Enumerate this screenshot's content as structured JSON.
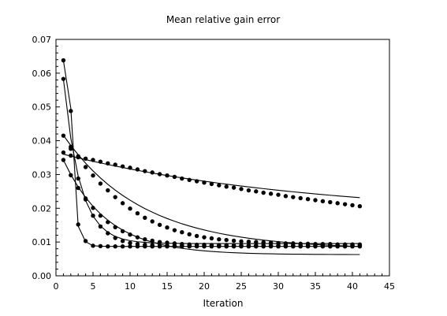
{
  "chart_data": {
    "type": "line",
    "title": "Mean relative gain error",
    "xlabel": "Iteration",
    "ylabel": "",
    "xlim": [
      0,
      45
    ],
    "ylim": [
      0,
      0.07
    ],
    "xticks": [
      "0",
      "5",
      "10",
      "15",
      "20",
      "25",
      "30",
      "35",
      "40",
      "45"
    ],
    "yticks": [
      "0.00",
      "0.01",
      "0.02",
      "0.03",
      "0.04",
      "0.05",
      "0.06",
      "0.07"
    ],
    "grid": false,
    "legend": "none",
    "line_color": "#000000",
    "marker": "filled-circle",
    "series": [
      {
        "x": [
          1,
          2,
          3,
          4,
          5,
          6,
          7,
          8,
          9,
          10,
          11,
          12,
          13,
          14,
          15,
          16,
          17,
          18,
          19,
          20,
          21,
          22,
          23,
          24,
          25,
          26,
          27,
          28,
          29,
          30,
          31,
          32,
          33,
          34,
          35,
          36,
          37,
          38,
          39,
          40,
          41
        ],
        "values": [
          0.0365,
          0.0356,
          0.0351,
          0.0347,
          0.0343,
          0.0338,
          0.0333,
          0.0329,
          0.0324,
          0.032,
          0.0315,
          0.031,
          0.0306,
          0.0301,
          0.0297,
          0.0293,
          0.0288,
          0.0284,
          0.028,
          0.0276,
          0.0272,
          0.0268,
          0.0264,
          0.0261,
          0.0257,
          0.0253,
          0.025,
          0.0246,
          0.0243,
          0.024,
          0.0236,
          0.0233,
          0.023,
          0.0227,
          0.0224,
          0.0221,
          0.0218,
          0.0215,
          0.0212,
          0.0209,
          0.0206
        ],
        "fit": [
          0.036,
          0.03545,
          0.03492,
          0.03441,
          0.03391,
          0.03343,
          0.03296,
          0.03251,
          0.03207,
          0.03164,
          0.03123,
          0.03083,
          0.03044,
          0.03006,
          0.0297,
          0.02934,
          0.029,
          0.02866,
          0.02834,
          0.02802,
          0.02772,
          0.02742,
          0.02713,
          0.02685,
          0.02658,
          0.02632,
          0.02606,
          0.02581,
          0.02557,
          0.02533,
          0.0251,
          0.02488,
          0.02467,
          0.02446,
          0.02425,
          0.02405,
          0.02386,
          0.02367,
          0.02349,
          0.02331,
          0.02314
        ]
      },
      {
        "x": [
          1,
          2,
          3,
          4,
          5,
          6,
          7,
          8,
          9,
          10,
          11,
          12,
          13,
          14,
          15,
          16,
          17,
          18,
          19,
          20,
          21,
          22,
          23,
          24,
          25,
          26,
          27,
          28,
          29,
          30,
          31,
          32,
          33,
          34,
          35,
          36,
          37,
          38,
          39,
          40,
          41
        ],
        "values": [
          0.0415,
          0.0382,
          0.0354,
          0.0322,
          0.0297,
          0.0273,
          0.0253,
          0.0233,
          0.0215,
          0.0199,
          0.0185,
          0.0172,
          0.0161,
          0.0151,
          0.0143,
          0.0135,
          0.0129,
          0.0123,
          0.0118,
          0.0114,
          0.0111,
          0.0108,
          0.0106,
          0.0104,
          0.0102,
          0.0101,
          0.01,
          0.0099,
          0.0098,
          0.0097,
          0.0096,
          0.0096,
          0.0095,
          0.0095,
          0.0094,
          0.0094,
          0.0094,
          0.0093,
          0.0093,
          0.0093,
          0.0093
        ],
        "fit": [
          0.0416,
          0.03859,
          0.03584,
          0.03333,
          0.03105,
          0.02898,
          0.02709,
          0.02537,
          0.0238,
          0.02238,
          0.02108,
          0.0199,
          0.01883,
          0.01785,
          0.01696,
          0.01615,
          0.01541,
          0.01474,
          0.01413,
          0.01357,
          0.01307,
          0.0126,
          0.01218,
          0.0118,
          0.01145,
          0.01113,
          0.01084,
          0.01058,
          0.01034,
          0.01012,
          0.00992,
          0.00973,
          0.00957,
          0.00942,
          0.00928,
          0.00915,
          0.00904,
          0.00893,
          0.00884,
          0.00875,
          0.00867
        ]
      },
      {
        "x": [
          1,
          2,
          3,
          4,
          5,
          6,
          7,
          8,
          9,
          10,
          11,
          12,
          13,
          14,
          15,
          16,
          17,
          18,
          19,
          20,
          21,
          22,
          23,
          24,
          25,
          26,
          27,
          28,
          29,
          30,
          31,
          32,
          33,
          34,
          35,
          36,
          37,
          38,
          39,
          40,
          41
        ],
        "values": [
          0.0343,
          0.0298,
          0.026,
          0.0229,
          0.0201,
          0.0178,
          0.0159,
          0.0144,
          0.0132,
          0.0122,
          0.0114,
          0.0108,
          0.0104,
          0.01,
          0.0098,
          0.0096,
          0.0094,
          0.0093,
          0.0092,
          0.0092,
          0.0091,
          0.0091,
          0.0091,
          0.009,
          0.009,
          0.009,
          0.009,
          0.009,
          0.009,
          0.009,
          0.009,
          0.009,
          0.009,
          0.009,
          0.009,
          0.009,
          0.009,
          0.009,
          0.009,
          0.009,
          0.009
        ],
        "fit": [
          0.0343,
          0.02997,
          0.0263,
          0.02319,
          0.02056,
          0.01834,
          0.01646,
          0.01487,
          0.01353,
          0.0124,
          0.01145,
          0.01064,
          0.00996,
          0.00938,
          0.0089,
          0.00849,
          0.00814,
          0.00785,
          0.0076,
          0.00739,
          0.00722,
          0.00707,
          0.00694,
          0.00684,
          0.00675,
          0.00667,
          0.00661,
          0.00656,
          0.00651,
          0.00647,
          0.00644,
          0.00641,
          0.00639,
          0.00637,
          0.00635,
          0.00634,
          0.00633,
          0.00632,
          0.00631,
          0.0063,
          0.0063
        ]
      },
      {
        "x": [
          1,
          2,
          3,
          4,
          5,
          6,
          7,
          8,
          9,
          10,
          11,
          12,
          13,
          14,
          15,
          16,
          17,
          18,
          19,
          20,
          21,
          22,
          23,
          24,
          25,
          26,
          27,
          28,
          29,
          30,
          31,
          32,
          33,
          34,
          35,
          36,
          37,
          38,
          39,
          40,
          41
        ],
        "values": [
          0.0583,
          0.0376,
          0.0288,
          0.0226,
          0.0178,
          0.0146,
          0.0126,
          0.0112,
          0.0103,
          0.0097,
          0.0094,
          0.0092,
          0.0091,
          0.009,
          0.009,
          0.0089,
          0.0089,
          0.0089,
          0.0089,
          0.0089,
          0.0089,
          0.0089,
          0.0089,
          0.0089,
          0.0089,
          0.0089,
          0.0089,
          0.0089,
          0.0089,
          0.0089,
          0.0089,
          0.0089,
          0.0089,
          0.0089,
          0.0089,
          0.0089,
          0.0089,
          0.0089,
          0.0089,
          0.0089,
          0.0089
        ],
        "fit": [
          0.0583,
          0.04072,
          0.02948,
          0.02229,
          0.01769,
          0.01475,
          0.01287,
          0.01167,
          0.0109,
          0.01041,
          0.01009,
          0.00989,
          0.00976,
          0.00968,
          0.00963,
          0.0096,
          0.00958,
          0.00956,
          0.00955,
          0.00955,
          0.00954,
          0.00954,
          0.00954,
          0.00954,
          0.00954,
          0.00954,
          0.00954,
          0.00954,
          0.00954,
          0.00954,
          0.00954,
          0.00954,
          0.00954,
          0.00954,
          0.00954,
          0.00954,
          0.00954,
          0.00954,
          0.00954,
          0.00954,
          0.00954
        ]
      },
      {
        "x": [
          1,
          2,
          3,
          4,
          5,
          6,
          7,
          8,
          9,
          10,
          11,
          12,
          13,
          14,
          15,
          16,
          17,
          18,
          19,
          20,
          21,
          22,
          23,
          24,
          25,
          26,
          27,
          28,
          29,
          30,
          31,
          32,
          33,
          34,
          35,
          36,
          37,
          38,
          39,
          40,
          41
        ],
        "values": [
          0.0638,
          0.0488,
          0.0152,
          0.0103,
          0.0089,
          0.0088,
          0.0087,
          0.0087,
          0.0087,
          0.0087,
          0.0087,
          0.0087,
          0.0087,
          0.0087,
          0.0087,
          0.0087,
          0.0087,
          0.0087,
          0.0087,
          0.0087,
          0.0087,
          0.0087,
          0.0087,
          0.0087,
          0.0087,
          0.0087,
          0.0087,
          0.0087,
          0.0087,
          0.0087,
          0.0087,
          0.0087,
          0.0087,
          0.0087,
          0.0087,
          0.0087,
          0.0087,
          0.0087,
          0.0087,
          0.0087,
          0.0087
        ],
        "fit": [
          0.0638,
          0.04966,
          0.0147,
          0.01009,
          0.0089,
          0.00876,
          0.00872,
          0.00871,
          0.00871,
          0.00871,
          0.00871,
          0.00871,
          0.00871,
          0.00871,
          0.00871,
          0.00871,
          0.00871,
          0.00871,
          0.00871,
          0.00871,
          0.00871,
          0.00871,
          0.00871,
          0.00871,
          0.00871,
          0.00871,
          0.00871,
          0.00871,
          0.00871,
          0.00871,
          0.00871,
          0.00871,
          0.00871,
          0.00871,
          0.00871,
          0.00871,
          0.00871,
          0.00871,
          0.00871,
          0.00871,
          0.00871
        ]
      }
    ]
  }
}
